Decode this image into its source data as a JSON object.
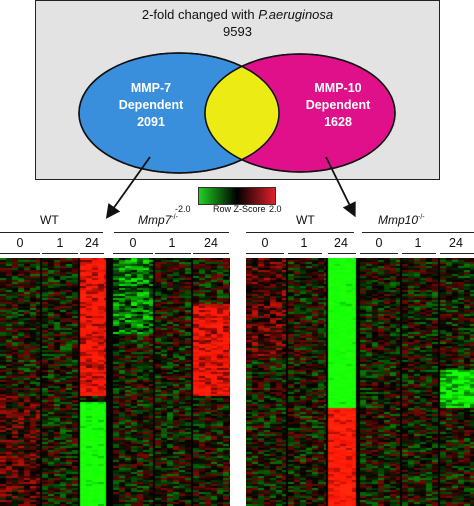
{
  "venn": {
    "header_prefix": "2-fold changed with ",
    "header_species": "P.aeruginosa",
    "total": "9593",
    "left": {
      "line1": "MMP-7",
      "line2": "Dependent",
      "count": "2091",
      "color": "#3a8fdc"
    },
    "right": {
      "line1": "MMP-10",
      "line2": "Dependent",
      "count": "1628",
      "color": "#e0108a"
    },
    "overlap_color": "#ecec14"
  },
  "legend": {
    "min": "-2.0",
    "max": "2.0",
    "label": "Row Z-Score",
    "low_color": "#22d022",
    "mid_color": "#000000",
    "high_color": "#e0202a"
  },
  "heatmap_left": {
    "group1": "WT",
    "group2_gene": "Mmp7",
    "group2_sup": "-/-",
    "timepoints": [
      "0",
      "1",
      "24",
      "0",
      "1",
      "24"
    ]
  },
  "heatmap_right": {
    "group1": "WT",
    "group2_gene": "Mmp10",
    "group2_sup": "-/-",
    "timepoints": [
      "0",
      "1",
      "24",
      "0",
      "1",
      "24"
    ]
  }
}
